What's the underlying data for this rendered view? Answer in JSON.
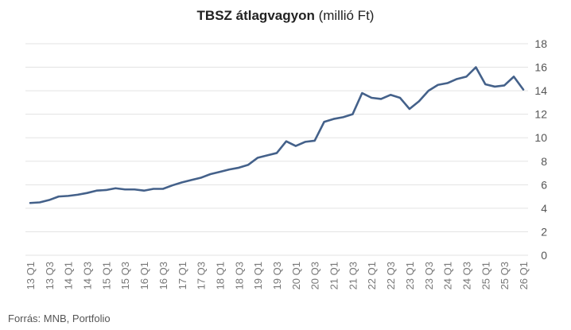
{
  "chart_data": {
    "type": "line",
    "title": "TBSZ átlagvagyon",
    "title_unit": "(millió Ft)",
    "source": "Forrás: MNB, Portfolio",
    "ylim": [
      0,
      18
    ],
    "y_ticks": [
      0,
      2,
      4,
      6,
      8,
      10,
      12,
      14,
      16,
      18
    ],
    "grid": true,
    "line_color": "#44618a",
    "grid_color": "#e3e3e3",
    "x_tick_labels": [
      "13 Q1",
      "13 Q3",
      "14 Q1",
      "14 Q3",
      "15 Q1",
      "15 Q3",
      "16 Q1",
      "16 Q3",
      "17 Q1",
      "17 Q3",
      "18 Q1",
      "18 Q3",
      "19 Q1",
      "19 Q3",
      "20 Q1",
      "20 Q3",
      "21 Q1",
      "21 Q3",
      "22 Q1",
      "22 Q3",
      "23 Q1",
      "23 Q3",
      "24 Q1",
      "24 Q3",
      "25 Q1",
      "25 Q3",
      "26 Q1"
    ],
    "x": [
      "13 Q1",
      "13 Q2",
      "13 Q3",
      "13 Q4",
      "14 Q1",
      "14 Q2",
      "14 Q3",
      "14 Q4",
      "15 Q1",
      "15 Q2",
      "15 Q3",
      "15 Q4",
      "16 Q1",
      "16 Q2",
      "16 Q3",
      "16 Q4",
      "17 Q1",
      "17 Q2",
      "17 Q3",
      "17 Q4",
      "18 Q1",
      "18 Q2",
      "18 Q3",
      "18 Q4",
      "19 Q1",
      "19 Q2",
      "19 Q3",
      "19 Q4",
      "20 Q1",
      "20 Q2",
      "20 Q3",
      "20 Q4",
      "21 Q1",
      "21 Q2",
      "21 Q3",
      "21 Q4",
      "22 Q1",
      "22 Q2",
      "22 Q3",
      "22 Q4",
      "23 Q1",
      "23 Q2",
      "23 Q3",
      "23 Q4",
      "24 Q1",
      "24 Q2",
      "24 Q3",
      "24 Q4",
      "25 Q1",
      "25 Q2",
      "25 Q3",
      "25 Q4",
      "26 Q1"
    ],
    "series": [
      {
        "values": [
          4.45,
          4.5,
          4.7,
          5.0,
          5.05,
          5.15,
          5.3,
          5.5,
          5.55,
          5.7,
          5.6,
          5.6,
          5.5,
          5.65,
          5.65,
          5.95,
          6.2,
          6.4,
          6.6,
          6.9,
          7.1,
          7.3,
          7.45,
          7.7,
          8.3,
          8.5,
          8.7,
          9.7,
          9.3,
          9.65,
          9.75,
          11.35,
          11.6,
          11.75,
          12.0,
          13.8,
          13.4,
          13.3,
          13.65,
          13.4,
          12.45,
          13.1,
          14.0,
          14.5,
          14.65,
          15.0,
          15.2,
          16.0,
          14.55,
          14.35,
          14.45,
          15.2,
          14.1
        ]
      }
    ]
  }
}
